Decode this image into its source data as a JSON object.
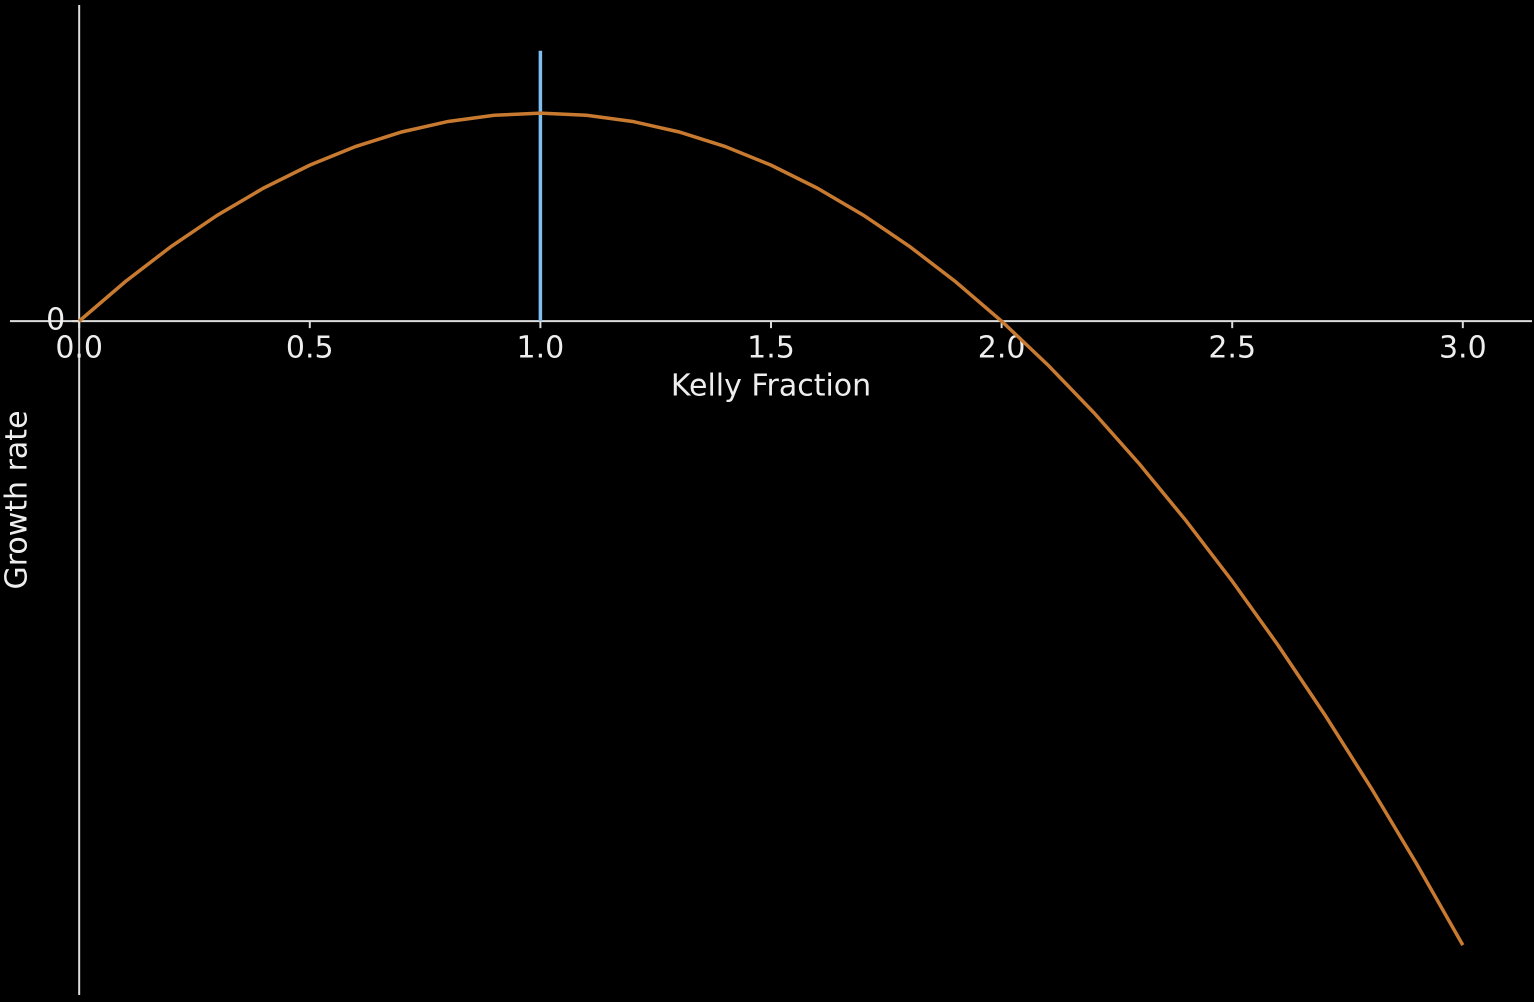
{
  "chart_data": {
    "type": "line",
    "xlabel": "Kelly Fraction",
    "ylabel": "Growth rate",
    "x": [
      0,
      0.1,
      0.2,
      0.3,
      0.4,
      0.5,
      0.6,
      0.7,
      0.8,
      0.9,
      1.0,
      1.1,
      1.2,
      1.3,
      1.4,
      1.5,
      1.6,
      1.7,
      1.8,
      1.9,
      2.0,
      2.1,
      2.2,
      2.3,
      2.4,
      2.5,
      2.6,
      2.7,
      2.8,
      2.9,
      3.0
    ],
    "values": [
      0,
      0.095,
      0.18,
      0.255,
      0.32,
      0.375,
      0.42,
      0.455,
      0.48,
      0.495,
      0.5,
      0.495,
      0.48,
      0.455,
      0.42,
      0.375,
      0.32,
      0.255,
      0.18,
      0.095,
      0,
      -0.105,
      -0.22,
      -0.345,
      -0.48,
      -0.625,
      -0.78,
      -0.945,
      -1.12,
      -1.305,
      -1.5
    ],
    "color": "#c87a30",
    "vline": {
      "x": 1,
      "ymin": 0,
      "ymax": 0.65,
      "color": "#7fbfef"
    },
    "xlim": [
      -0.15,
      3.15
    ],
    "ylim": [
      -1.62,
      0.76
    ],
    "xticks": [
      {
        "value": 0,
        "label": "0.0"
      },
      {
        "value": 0.5,
        "label": "0.5"
      },
      {
        "value": 1,
        "label": "1.0"
      },
      {
        "value": 1.5,
        "label": "1.5"
      },
      {
        "value": 2,
        "label": "2.0"
      },
      {
        "value": 2.5,
        "label": "2.5"
      },
      {
        "value": 3,
        "label": "3.0"
      }
    ],
    "yticks": [
      0
    ]
  }
}
